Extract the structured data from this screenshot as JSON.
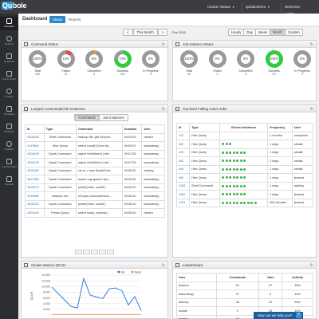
{
  "app": {
    "logo": "Qu",
    "logo_rest": "bole"
  },
  "topbar": {
    "cluster": "Cluster Status",
    "account": "qubaledemo",
    "user": "Welcome, rphilip"
  },
  "sidebar": [
    {
      "label": "Overview",
      "icon": "dashboard-icon",
      "active": true
    },
    {
      "label": "Explore",
      "icon": "compass-icon"
    },
    {
      "label": "Notebook",
      "icon": "notebook-icon"
    },
    {
      "label": "Smart Query",
      "icon": "query-icon"
    },
    {
      "label": "Analyze",
      "icon": "analyze-icon"
    },
    {
      "label": "Templates",
      "icon": "template-icon"
    },
    {
      "label": "Scheduler",
      "icon": "calendar-icon"
    },
    {
      "label": "Clusters",
      "icon": "cluster-icon"
    },
    {
      "label": "Control Panel",
      "icon": "gear-icon"
    },
    {
      "label": "Tutorials",
      "icon": "play-icon"
    }
  ],
  "header": {
    "title": "Dashboard",
    "tabs": [
      "Status",
      "Reports"
    ],
    "active_tab": "Status"
  },
  "range": {
    "prev": "<",
    "current": "This Month",
    "next": ">",
    "date": "Feb 2015",
    "options": [
      "Hourly",
      "Day",
      "Week",
      "Month",
      "Custom"
    ],
    "active": "Month"
  },
  "command_status": {
    "title": "Command Status",
    "gauges": [
      {
        "label": "Total",
        "value": "160",
        "pct": "100%",
        "color": "#9a9a9a",
        "fill": 1.0
      },
      {
        "label": "Failed",
        "value": "21",
        "pct": "13%",
        "color": "#e74c3c",
        "fill": 0.13
      },
      {
        "label": "Cancelled",
        "value": "8",
        "pct": "5%",
        "color": "#f39c12",
        "fill": 0.05
      },
      {
        "label": "Success",
        "value": "118",
        "pct": "74%",
        "color": "#2ecc40",
        "fill": 0.74
      },
      {
        "label": "In Progress",
        "value": "0",
        "pct": "0%",
        "color": "#9a9a9a",
        "fill": 0
      }
    ]
  },
  "job_instance_status": {
    "title": "Job Instance Status",
    "gauges": [
      {
        "label": "Total",
        "value": "99",
        "pct": "100%",
        "color": "#9a9a9a",
        "fill": 1.0
      },
      {
        "label": "Failed",
        "value": "0",
        "pct": "0%",
        "color": "#e74c3c",
        "fill": 0
      },
      {
        "label": "Cancelled",
        "value": "0",
        "pct": "0%",
        "color": "#f39c12",
        "fill": 0
      },
      {
        "label": "Success",
        "value": "99",
        "pct": "100%",
        "color": "#2ecc40",
        "fill": 1.0
      },
      {
        "label": "In Progress",
        "value": "0",
        "pct": "0%",
        "color": "#9a9a9a",
        "fill": 0
      }
    ]
  },
  "longest_commands": {
    "title": "Longest Commands/Job Instances",
    "subtabs": [
      "Commands",
      "Job Instances"
    ],
    "active_subtab": "Commands",
    "columns": [
      "Id",
      "Type",
      "Command",
      "Duration",
      "User"
    ],
    "rows": [
      [
        "4306446",
        "Shell Command",
        "hadoop dfs -get s3://pro...",
        "00:24:29",
        "dneshr"
      ],
      [
        "4419664",
        "Hive Query",
        "select count(*) from de...",
        "00:09:21",
        "karandeepj"
      ],
      [
        "4306108",
        "Spark Command",
        "object HelloWorld { def...",
        "00:07:26",
        "karandeepj"
      ],
      [
        "4306108",
        "Spark Command",
        "object HelloWorld { def ...",
        "00:07:25",
        "karandeepj"
      ],
      [
        "4305486",
        "Spark Command",
        "val sc = new SparkCont...",
        "00:06:42",
        "adubey"
      ],
      [
        "4307069",
        "Spark Command",
        "import org.apache.spa...",
        "00:06:34",
        "karandeepj"
      ],
      [
        "4306273",
        "Spark Command",
        "println('hello, world!')",
        "00:06:29",
        "karandeepj"
      ],
      [
        "4516666",
        "Hadoop Job",
        "s3://pari-a-bucket/hado...",
        "00:06:20",
        "karandeepj"
      ],
      [
        "4306313",
        "Spark Command",
        "println('hello, world!')",
        "00:06:19",
        "karandeepj"
      ],
      [
        "4304444",
        "Presto Query",
        "select sum(i_custney) ...",
        "00:06:00",
        "dneshr"
      ]
    ]
  },
  "failing_jobs": {
    "title": "Top Most Failing Active Jobs",
    "columns": [
      "Id",
      "Type",
      "Recent Instances",
      "Frequency",
      "User"
    ],
    "rows": [
      {
        "id": "231",
        "type": "Hive Query",
        "dots": 0,
        "frequency": "1 months",
        "user": "rvenpheet"
      },
      {
        "id": "460",
        "type": "Hive Query",
        "dots": 3,
        "frequency": "1 days",
        "user": "sshaik"
      },
      {
        "id": "429",
        "type": "Hive Query",
        "dots": 7,
        "frequency": "1 days",
        "user": "sshaik"
      },
      {
        "id": "463",
        "type": "Hive Query",
        "dots": 7,
        "frequency": "1 days",
        "user": "sshaik"
      },
      {
        "id": "464",
        "type": "Hive Query",
        "dots": 7,
        "frequency": "1 days",
        "user": "sshaik"
      },
      {
        "id": "465",
        "type": "Hive Query",
        "dots": 7,
        "frequency": "1 days",
        "user": "jesarna"
      },
      {
        "id": "1296",
        "type": "Shell Command",
        "dots": 7,
        "frequency": "1 days",
        "user": "adubey"
      },
      {
        "id": "1660",
        "type": "Hive Query",
        "dots": 7,
        "frequency": "1 days",
        "user": "jesarna"
      },
      {
        "id": "1751",
        "type": "Hive Query",
        "dots": 10,
        "frequency": "300 minutes",
        "user": "jesarna"
      }
    ]
  },
  "cluster_metrics": {
    "title": "Cluster Metrics QCUH"
  },
  "chart_data": {
    "type": "line",
    "ylabel": "QCUH",
    "ylim": [
      0,
      14000
    ],
    "yticks": [
      "14,000",
      "12,000",
      "10,000",
      "8,000",
      "6,000",
      "4,000",
      "2,000"
    ],
    "series": [
      {
        "name": "hd",
        "color": "#2f7ed8",
        "values": [
          9800,
          7500,
          5300,
          3000,
          2500,
          12800,
          7000,
          6300,
          5800,
          9200,
          9500,
          8500,
          3500,
          6500,
          1500
        ]
      },
      {
        "name": "fixed",
        "color": "#f28f43",
        "values": [
          200,
          200,
          200,
          200,
          200,
          200,
          200,
          200,
          200,
          200,
          200,
          200,
          200,
          200,
          200
        ]
      }
    ]
  },
  "leaderboard": {
    "title": "Leaderboard",
    "columns": [
      "User",
      "Commands",
      "Jobs",
      "Activity"
    ],
    "rows": [
      [
        "jesarna",
        "61",
        "47",
        "33%"
      ],
      [
        "karandeepj",
        "47",
        "0",
        "14%"
      ],
      [
        "adubey",
        "43",
        "20",
        "23%"
      ],
      [
        "sshaik",
        "0",
        "33",
        "10%"
      ],
      [
        "dneshr",
        "26",
        "0",
        "8%"
      ]
    ]
  },
  "help": {
    "label": "How can we help you?"
  }
}
